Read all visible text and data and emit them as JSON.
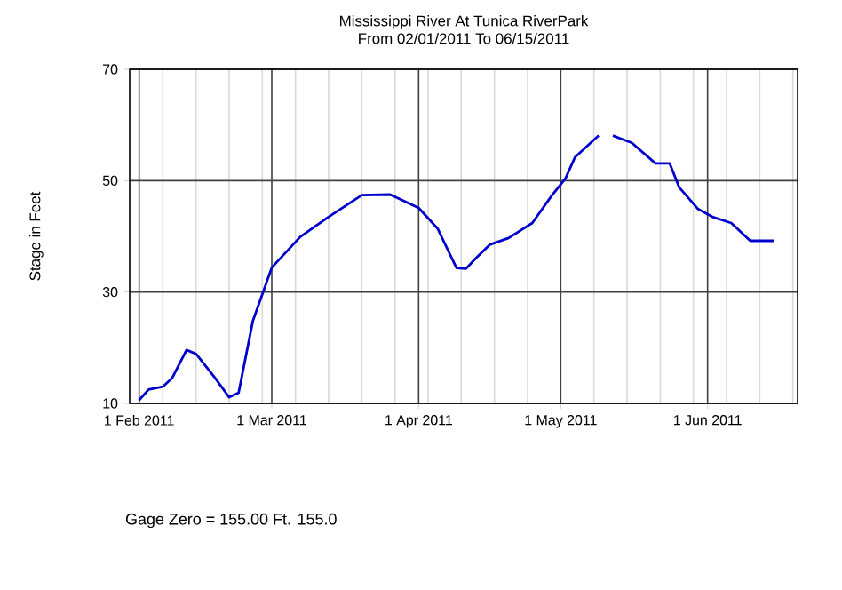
{
  "chart_data": {
    "type": "line",
    "title": "Mississippi River At Tunica RiverPark",
    "subtitle": "From 02/01/2011 To 06/15/2011",
    "ylabel": "Stage in Feet",
    "annotations": [
      "Gage Zero = 155.00 Ft. 155.0"
    ],
    "x": [
      "2011-02-01",
      "2011-02-03",
      "2011-02-06",
      "2011-02-08",
      "2011-02-11",
      "2011-02-13",
      "2011-02-17",
      "2011-02-20",
      "2011-02-22",
      "2011-02-25",
      "2011-03-01",
      "2011-03-07",
      "2011-03-13",
      "2011-03-20",
      "2011-03-26",
      "2011-04-01",
      "2011-04-05",
      "2011-04-09",
      "2011-04-11",
      "2011-04-13",
      "2011-04-16",
      "2011-04-20",
      "2011-04-25",
      "2011-04-29",
      "2011-05-02",
      "2011-05-04",
      "2011-05-09",
      "2011-05-10",
      "2011-05-12",
      "2011-05-16",
      "2011-05-21",
      "2011-05-24",
      "2011-05-26",
      "2011-05-30",
      "2011-06-02",
      "2011-06-06",
      "2011-06-10",
      "2011-06-15"
    ],
    "series": [
      {
        "color": "#0000cc",
        "values": [
          10.6,
          12.5,
          13.0,
          14.6,
          19.6,
          18.9,
          14.6,
          11.1,
          11.9,
          24.8,
          34.4,
          39.9,
          43.5,
          47.4,
          47.5,
          45.1,
          41.4,
          34.3,
          34.2,
          36.0,
          38.5,
          39.7,
          42.4,
          47.2,
          50.4,
          54.2,
          58.1,
          null,
          58.1,
          56.8,
          53.1,
          53.1,
          48.8,
          44.9,
          43.5,
          42.4,
          39.2,
          39.2
        ]
      }
    ],
    "xlim": [
      "2011-01-30",
      "2011-06-20"
    ],
    "ylim": [
      10,
      70
    ],
    "yticks": [
      10,
      30,
      50,
      70
    ],
    "xticks": [
      {
        "value": "2011-02-01",
        "label": "1 Feb 2011"
      },
      {
        "value": "2011-03-01",
        "label": "1 Mar 2011"
      },
      {
        "value": "2011-04-01",
        "label": "1 Apr 2011"
      },
      {
        "value": "2011-05-01",
        "label": "1 May 2011"
      },
      {
        "value": "2011-06-01",
        "label": "1 Jun 2011"
      },
      {
        "value": "2011-02-06",
        "label": null
      },
      {
        "value": "2011-02-13",
        "label": null
      },
      {
        "value": "2011-02-20",
        "label": null
      },
      {
        "value": "2011-02-27",
        "label": null
      },
      {
        "value": "2011-03-06",
        "label": null
      },
      {
        "value": "2011-03-13",
        "label": null
      },
      {
        "value": "2011-03-20",
        "label": null
      },
      {
        "value": "2011-03-27",
        "label": null
      },
      {
        "value": "2011-04-03",
        "label": null
      },
      {
        "value": "2011-04-10",
        "label": null
      },
      {
        "value": "2011-04-17",
        "label": null
      },
      {
        "value": "2011-04-24",
        "label": null
      },
      {
        "value": "2011-05-08",
        "label": null
      },
      {
        "value": "2011-05-15",
        "label": null
      },
      {
        "value": "2011-05-22",
        "label": null
      },
      {
        "value": "2011-05-29",
        "label": null
      },
      {
        "value": "2011-06-05",
        "label": null
      },
      {
        "value": "2011-06-12",
        "label": null
      },
      {
        "value": "2011-06-19",
        "label": null
      }
    ],
    "grid": true,
    "marker": "none",
    "line_style": "solid"
  }
}
